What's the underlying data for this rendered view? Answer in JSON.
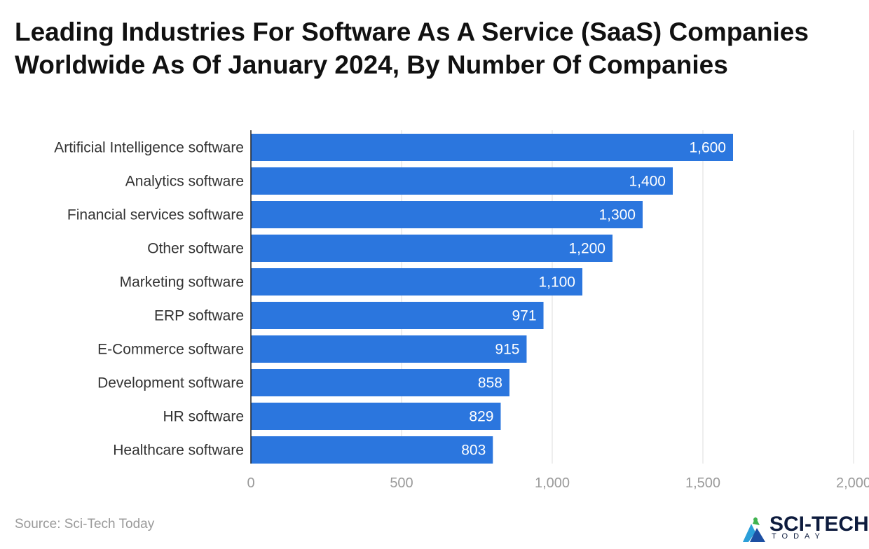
{
  "chart_data": {
    "type": "bar",
    "orientation": "horizontal",
    "title": "Leading Industries For Software As A Service (SaaS) Companies Worldwide As Of January 2024, By Number Of Companies",
    "categories": [
      "Artificial Intelligence software",
      "Analytics software",
      "Financial services software",
      "Other software",
      "Marketing software",
      "ERP software",
      "E-Commerce software",
      "Development software",
      "HR software",
      "Healthcare software"
    ],
    "values": [
      1600,
      1400,
      1300,
      1200,
      1100,
      971,
      915,
      858,
      829,
      803
    ],
    "value_labels": [
      "1,600",
      "1,400",
      "1,300",
      "1,200",
      "1,100",
      "971",
      "915",
      "858",
      "829",
      "803"
    ],
    "xlim": [
      0,
      2000
    ],
    "xticks": [
      0,
      500,
      1000,
      1500,
      2000
    ],
    "xtick_labels": [
      "0",
      "500",
      "1,000",
      "1,500",
      "2,000"
    ],
    "grid": true,
    "xlabel": "",
    "ylabel": "",
    "bar_color": "#2b76de",
    "grid_color": "#dddddd"
  },
  "footer": {
    "source": "Source: Sci-Tech Today"
  },
  "logo": {
    "name": "SCI-TECH",
    "tagline": "TODAY",
    "icon": "sci-tech-logo-icon"
  }
}
